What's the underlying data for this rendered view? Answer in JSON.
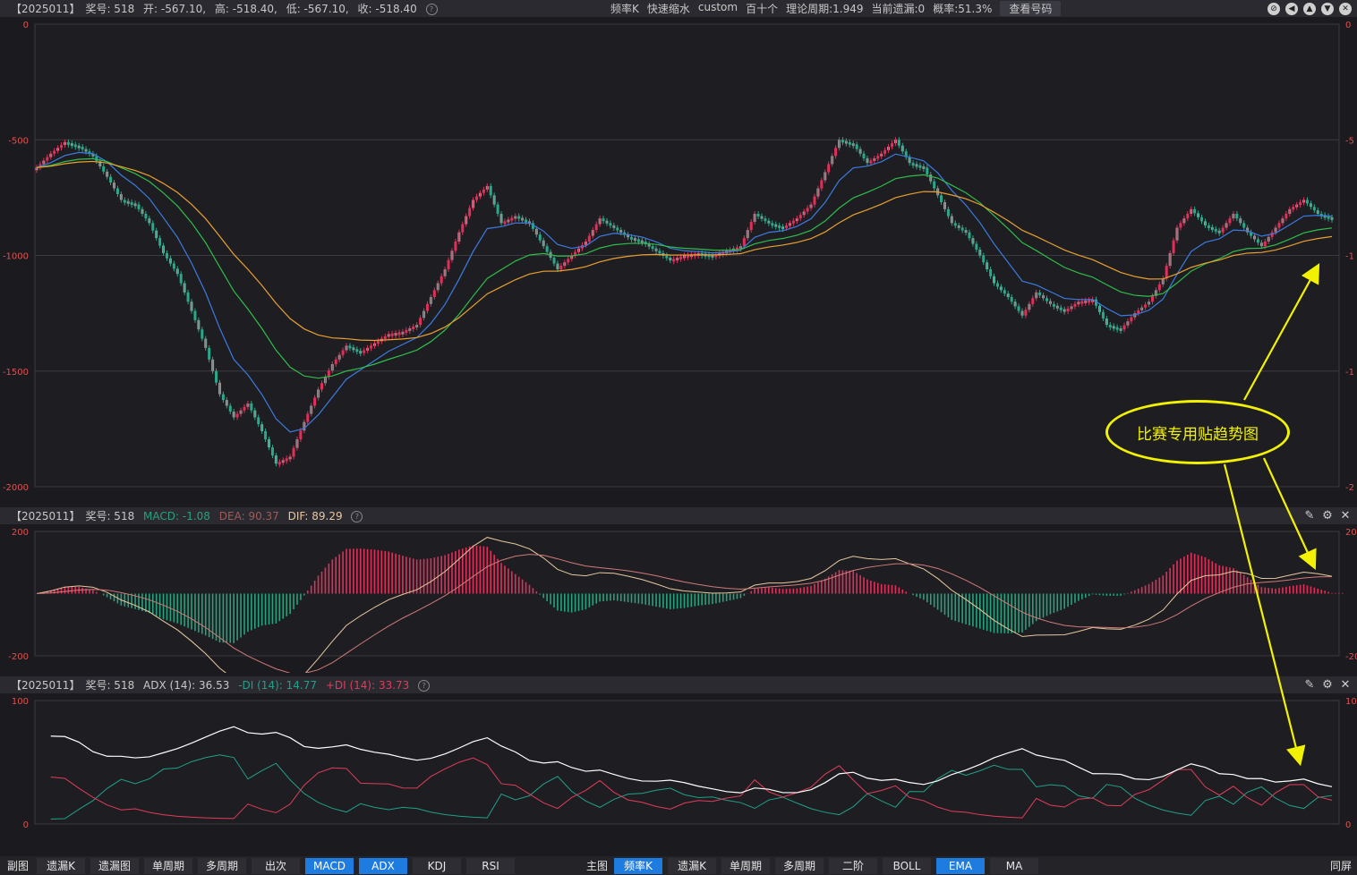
{
  "header": {
    "code": "【2025011】",
    "prize_label": "奖号: 518",
    "open": "开: -567.10,",
    "high": "高: -518.40,",
    "low": "低: -567.10,",
    "close": "收: -518.40",
    "modes": [
      "频率K",
      "快速缩水",
      "custom",
      "百十个"
    ],
    "theory_period": "理论周期:1.949",
    "current_miss": "当前遗漏:0",
    "probability": "概率:51.3%",
    "view_button": "查看号码"
  },
  "main_axis": {
    "labels": [
      "0",
      "-500",
      "-1000",
      "-1500",
      "-2000"
    ],
    "right_labels": [
      "0",
      "-5",
      "-1",
      "-1",
      "-2"
    ]
  },
  "macd_panel": {
    "code": "【2025011】",
    "prize_label": "奖号: 518",
    "macd": "MACD: -1.08",
    "dea": "DEA: 90.37",
    "dif": "DIF: 89.29",
    "axis": [
      "200",
      "-200"
    ],
    "right_axis": [
      "20",
      "-20"
    ],
    "colors": {
      "macd": "#27a27c",
      "dea": "#d07a7a",
      "dif": "#e8c8a0"
    }
  },
  "adx_panel": {
    "code": "【2025011】",
    "prize_label": "奖号: 518",
    "adx": "ADX (14): 36.53",
    "minus_di": "-DI (14): 14.77",
    "plus_di": "+DI (14): 33.73",
    "axis": [
      "100",
      "0"
    ],
    "right_axis": [
      "10",
      "0"
    ],
    "colors": {
      "adx": "#ffffff",
      "minus_di": "#1fa08a",
      "plus_di": "#e03c5a"
    }
  },
  "annotation": {
    "text": "比赛专用贴趋势图",
    "color": "#f2f200"
  },
  "bottom_tabs": {
    "left_label": "副图",
    "left": [
      {
        "label": "遗漏K",
        "active": false
      },
      {
        "label": "遗漏图",
        "active": false
      },
      {
        "label": "单周期",
        "active": false
      },
      {
        "label": "多周期",
        "active": false
      },
      {
        "label": "出次",
        "active": false
      },
      {
        "label": "MACD",
        "active": true
      },
      {
        "label": "ADX",
        "active": true
      },
      {
        "label": "KDJ",
        "active": false
      },
      {
        "label": "RSI",
        "active": false
      }
    ],
    "right_label": "主图",
    "right": [
      {
        "label": "频率K",
        "active": true
      },
      {
        "label": "遗漏K",
        "active": false
      },
      {
        "label": "单周期",
        "active": false
      },
      {
        "label": "多周期",
        "active": false
      },
      {
        "label": "二阶",
        "active": false
      },
      {
        "label": "BOLL",
        "active": false
      },
      {
        "label": "EMA",
        "active": true
      },
      {
        "label": "MA",
        "active": false
      }
    ],
    "far_right": "同屏"
  },
  "chart_data": {
    "type": "line",
    "ylim": [
      -2000,
      0
    ],
    "series": [
      {
        "name": "",
        "values": [
          -620,
          -560,
          -510,
          -530,
          -570,
          -660,
          -760,
          -780,
          -860,
          -990,
          -1080,
          -1240,
          -1400,
          -1600,
          -1700,
          -1640,
          -1760,
          -1900,
          -1870,
          -1720,
          -1580,
          -1470,
          -1390,
          -1420,
          -1380,
          -1340,
          -1330,
          -1300,
          -1180,
          -1060,
          -900,
          -760,
          -700,
          -860,
          -830,
          -860,
          -960,
          -1060,
          -1000,
          -940,
          -840,
          -880,
          -920,
          -940,
          -980,
          -1020,
          -1000,
          -990,
          -1000,
          -980,
          -960,
          -820,
          -860,
          -880,
          -840,
          -780,
          -640,
          -500,
          -520,
          -600,
          -560,
          -500,
          -600,
          -620,
          -740,
          -860,
          -900,
          -1000,
          -1120,
          -1180,
          -1260,
          -1160,
          -1210,
          -1240,
          -1200,
          -1190,
          -1300,
          -1320,
          -1250,
          -1200,
          -1100,
          -880,
          -800,
          -870,
          -900,
          -820,
          -900,
          -960,
          -880,
          -800,
          -760,
          -820,
          -840
        ]
      }
    ]
  }
}
